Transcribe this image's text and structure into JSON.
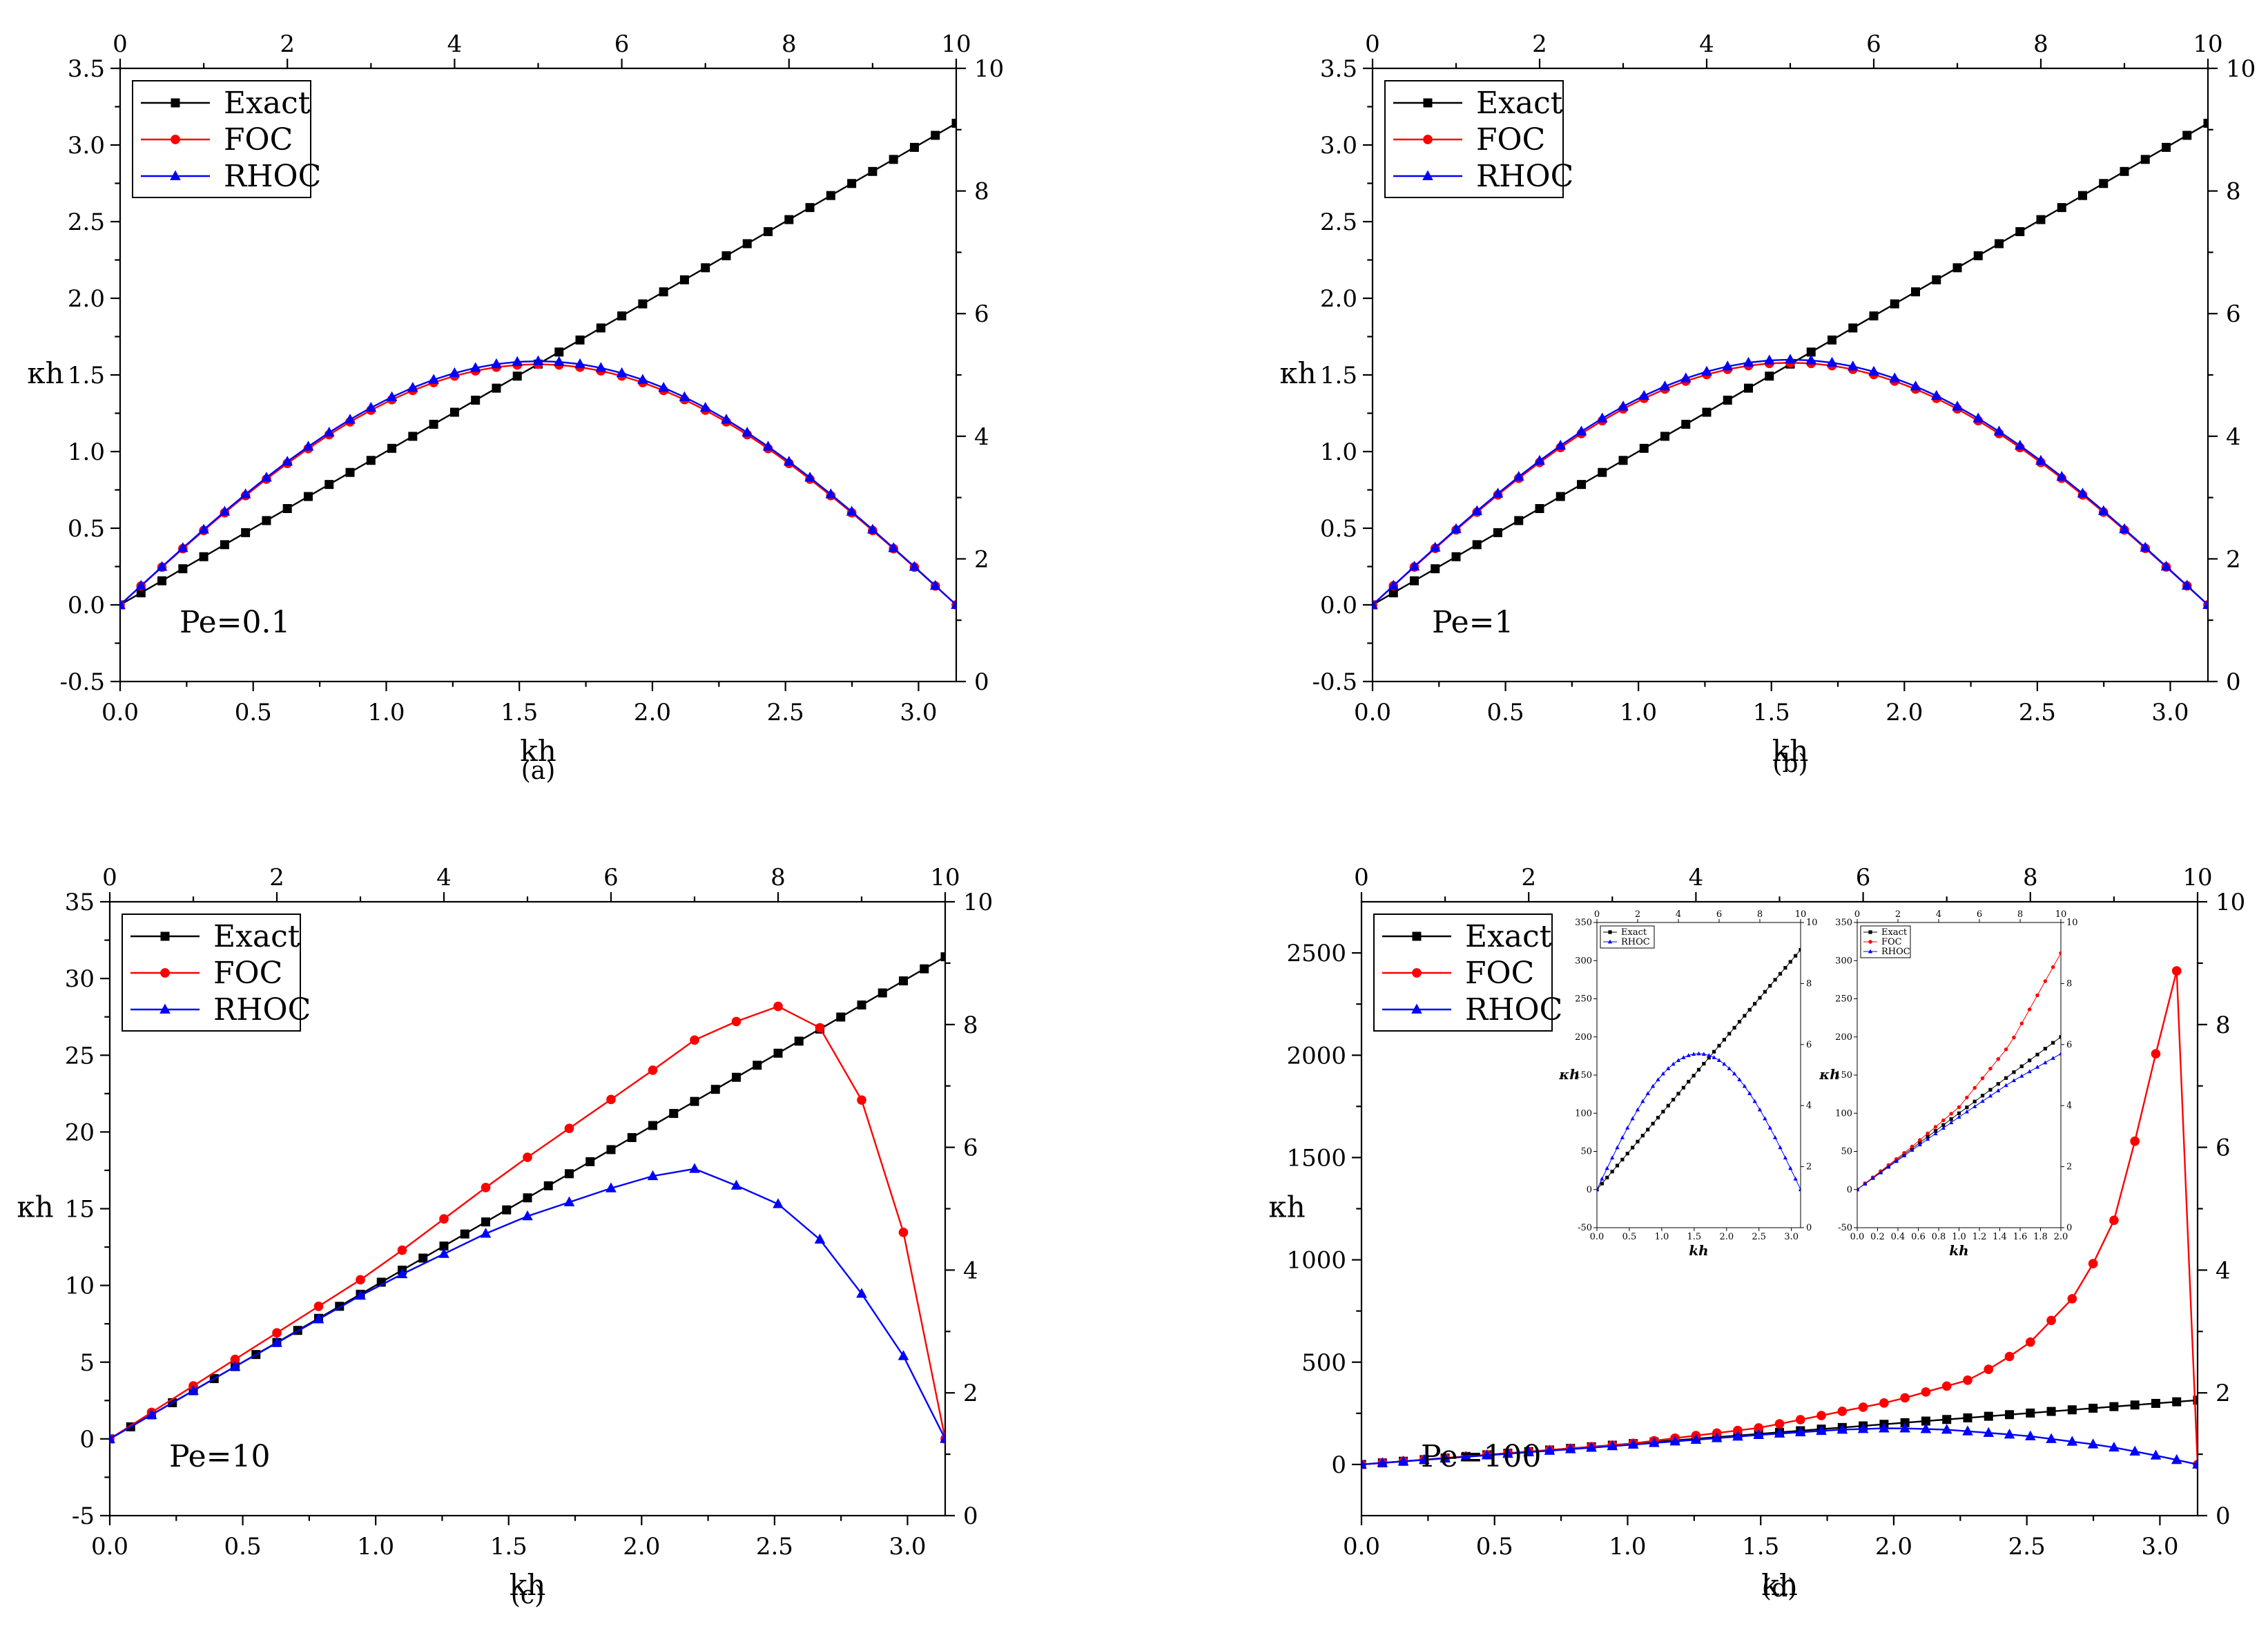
{
  "colors": {
    "exact": "#000000",
    "foc": "#ff0000",
    "rhoc": "#0000ff"
  },
  "chart_data": [
    {
      "id": "a",
      "type": "line",
      "caption": "(a)",
      "annotation": "Pe=0.1",
      "xlabel": "kh",
      "ylabel": "κh",
      "xlim": [
        0,
        3.1416
      ],
      "ylim": [
        -0.5,
        3.5
      ],
      "xticks": [
        0,
        0.5,
        1,
        1.5,
        2,
        2.5,
        3
      ],
      "xtick_labels": [
        "0.0",
        "0.5",
        "1.0",
        "1.5",
        "2.0",
        "2.5",
        "3.0"
      ],
      "yticks": [
        -0.5,
        0,
        0.5,
        1,
        1.5,
        2,
        2.5,
        3,
        3.5
      ],
      "ytick_labels": [
        "-0.5",
        "0.0",
        "0.5",
        "1.0",
        "1.5",
        "2.0",
        "2.5",
        "3.0",
        "3.5"
      ],
      "top_ticks": [
        "0",
        "2",
        "4",
        "6",
        "8",
        "10"
      ],
      "right_ticks": [
        "0",
        "2",
        "4",
        "6",
        "8",
        "10"
      ],
      "legend": [
        "Exact",
        "FOC",
        "RHOC"
      ],
      "series": [
        {
          "name": "Exact",
          "points": 40,
          "values": [
            0,
            3.1416
          ],
          "shape": "linear"
        },
        {
          "name": "FOC",
          "points": 40,
          "values": [
            0,
            1.57,
            0
          ],
          "shape": "sine",
          "peak": 1.57
        },
        {
          "name": "RHOC",
          "points": 40,
          "values": [
            0,
            1.59,
            0
          ],
          "shape": "sine",
          "peak": 1.59
        }
      ]
    },
    {
      "id": "b",
      "type": "line",
      "caption": "(b)",
      "annotation": "Pe=1",
      "xlabel": "kh",
      "ylabel": "κh",
      "xlim": [
        0,
        3.1416
      ],
      "ylim": [
        -0.5,
        3.5
      ],
      "xticks": [
        0,
        0.5,
        1,
        1.5,
        2,
        2.5,
        3
      ],
      "xtick_labels": [
        "0.0",
        "0.5",
        "1.0",
        "1.5",
        "2.0",
        "2.5",
        "3.0"
      ],
      "yticks": [
        -0.5,
        0,
        0.5,
        1,
        1.5,
        2,
        2.5,
        3,
        3.5
      ],
      "ytick_labels": [
        "-0.5",
        "0.0",
        "0.5",
        "1.0",
        "1.5",
        "2.0",
        "2.5",
        "3.0",
        "3.5"
      ],
      "top_ticks": [
        "0",
        "2",
        "4",
        "6",
        "8",
        "10"
      ],
      "right_ticks": [
        "0",
        "2",
        "4",
        "6",
        "8",
        "10"
      ],
      "legend": [
        "Exact",
        "FOC",
        "RHOC"
      ],
      "series": [
        {
          "name": "Exact",
          "points": 40,
          "values": [
            0,
            3.1416
          ],
          "shape": "linear"
        },
        {
          "name": "FOC",
          "points": 40,
          "values": [
            0,
            1.58,
            0
          ],
          "shape": "sine",
          "peak": 1.58
        },
        {
          "name": "RHOC",
          "points": 40,
          "values": [
            0,
            1.6,
            0
          ],
          "shape": "sine",
          "peak": 1.6
        }
      ]
    },
    {
      "id": "c",
      "type": "line",
      "caption": "(c)",
      "annotation": "Pe=10",
      "xlabel": "kh",
      "ylabel": "κh",
      "xlim": [
        0,
        3.1416
      ],
      "ylim": [
        -5,
        35
      ],
      "xticks": [
        0,
        0.5,
        1,
        1.5,
        2,
        2.5,
        3
      ],
      "xtick_labels": [
        "0.0",
        "0.5",
        "1.0",
        "1.5",
        "2.0",
        "2.5",
        "3.0"
      ],
      "yticks": [
        -5,
        0,
        5,
        10,
        15,
        20,
        25,
        30,
        35
      ],
      "ytick_labels": [
        "-5",
        "0",
        "5",
        "10",
        "15",
        "20",
        "25",
        "30",
        "35"
      ],
      "top_ticks": [
        "0",
        "2",
        "4",
        "6",
        "8",
        "10"
      ],
      "right_ticks": [
        "0",
        "2",
        "4",
        "6",
        "8",
        "10"
      ],
      "legend": [
        "Exact",
        "FOC",
        "RHOC"
      ],
      "series": [
        {
          "name": "Exact",
          "points": 40,
          "shape": "linear",
          "slope": 10
        },
        {
          "name": "FOC",
          "points": 20,
          "shape": "interp",
          "knots": [
            [
              0,
              0
            ],
            [
              0.5,
              5.5
            ],
            [
              1.0,
              11.0
            ],
            [
              1.5,
              17.5
            ],
            [
              2.0,
              23.5
            ],
            [
              2.2,
              26.0
            ],
            [
              2.5,
              28.3
            ],
            [
              2.67,
              26.8
            ],
            [
              2.83,
              22.0
            ],
            [
              3.0,
              12.6
            ],
            [
              3.1416,
              0
            ]
          ]
        },
        {
          "name": "RHOC",
          "points": 20,
          "shape": "interp",
          "knots": [
            [
              0,
              0
            ],
            [
              0.5,
              5.0
            ],
            [
              1.0,
              9.9
            ],
            [
              1.5,
              14.1
            ],
            [
              2.0,
              17.0
            ],
            [
              2.2,
              17.6
            ],
            [
              2.5,
              15.5
            ],
            [
              2.67,
              13.0
            ],
            [
              2.83,
              9.4
            ],
            [
              3.0,
              5.0
            ],
            [
              3.1416,
              0
            ]
          ]
        }
      ]
    },
    {
      "id": "d",
      "type": "line",
      "caption": "(d)",
      "annotation": "Pe=100",
      "xlabel": "kh",
      "ylabel": "κh",
      "xlim": [
        0,
        3.1416
      ],
      "ylim": [
        -250,
        2750
      ],
      "xticks": [
        0,
        0.5,
        1,
        1.5,
        2,
        2.5,
        3
      ],
      "xtick_labels": [
        "0.0",
        "0.5",
        "1.0",
        "1.5",
        "2.0",
        "2.5",
        "3.0"
      ],
      "yticks": [
        0,
        500,
        1000,
        1500,
        2000,
        2500
      ],
      "ytick_labels": [
        "0",
        "500",
        "1000",
        "1500",
        "2000",
        "2500"
      ],
      "top_ticks": [
        "0",
        "2",
        "4",
        "6",
        "8",
        "10"
      ],
      "right_ticks": [
        "0",
        "2",
        "4",
        "6",
        "8",
        "10"
      ],
      "legend": [
        "Exact",
        "FOC",
        "RHOC"
      ],
      "series": [
        {
          "name": "Exact",
          "points": 40,
          "shape": "linear",
          "slope": 100
        },
        {
          "name": "FOC",
          "points": 40,
          "shape": "interp",
          "knots": [
            [
              0,
              0
            ],
            [
              1.0,
              100
            ],
            [
              1.5,
              180
            ],
            [
              2.0,
              310
            ],
            [
              2.3,
              420
            ],
            [
              2.5,
              580
            ],
            [
              2.7,
              850
            ],
            [
              2.83,
              1200
            ],
            [
              2.95,
              1800
            ],
            [
              3.03,
              2280
            ],
            [
              3.09,
              2520
            ],
            [
              3.1416,
              0
            ]
          ]
        },
        {
          "name": "RHOC",
          "points": 40,
          "shape": "interp",
          "knots": [
            [
              0,
              0
            ],
            [
              1.0,
              95
            ],
            [
              1.5,
              145
            ],
            [
              1.8,
              170
            ],
            [
              2.0,
              178
            ],
            [
              2.2,
              170
            ],
            [
              2.5,
              140
            ],
            [
              2.8,
              90
            ],
            [
              3.0,
              40
            ],
            [
              3.1416,
              0
            ]
          ]
        }
      ],
      "insets": [
        {
          "id": "d-inset1",
          "xlabel": "kh",
          "ylabel": "κh",
          "xlim": [
            0,
            3.1416
          ],
          "ylim": [
            -50,
            350
          ],
          "xtick_labels": [
            "0.0",
            "0.5",
            "1.0",
            "1.5",
            "2.0",
            "2.5",
            "3.0"
          ],
          "ytick_labels": [
            "-50",
            "0",
            "50",
            "100",
            "150",
            "200",
            "250",
            "300",
            "350"
          ],
          "top_ticks": [
            "0",
            "2",
            "4",
            "6",
            "8",
            "10"
          ],
          "right_ticks": [
            "0",
            "2",
            "4",
            "6",
            "8",
            "10"
          ],
          "legend": [
            "Exact",
            "RHOC"
          ],
          "series": [
            {
              "name": "Exact",
              "shape": "linear",
              "slope": 100,
              "points": 40
            },
            {
              "name": "RHOC",
              "shape": "sine",
              "peak": 178,
              "points": 40
            }
          ]
        },
        {
          "id": "d-inset2",
          "xlabel": "kh",
          "ylabel": "κh",
          "xlim": [
            0,
            2.0
          ],
          "ylim": [
            -50,
            350
          ],
          "xtick_labels": [
            "0.0",
            "0.2",
            "0.4",
            "0.6",
            "0.8",
            "1.0",
            "1.2",
            "1.4",
            "1.6",
            "1.8",
            "2.0"
          ],
          "ytick_labels": [
            "-50",
            "0",
            "50",
            "100",
            "150",
            "200",
            "250",
            "300",
            "350"
          ],
          "top_ticks": [
            "0",
            "2",
            "4",
            "6",
            "8",
            "10"
          ],
          "right_ticks": [
            "0",
            "2",
            "4",
            "6",
            "8",
            "10"
          ],
          "legend": [
            "Exact",
            "FOC",
            "RHOC"
          ],
          "series": [
            {
              "name": "Exact",
              "shape": "linear",
              "slope": 100,
              "points": 26
            },
            {
              "name": "FOC",
              "shape": "interp",
              "points": 26,
              "knots": [
                [
                  0,
                  0
                ],
                [
                  0.5,
                  52
                ],
                [
                  1.0,
                  108
                ],
                [
                  1.5,
                  190
                ],
                [
                  2.0,
                  310
                ]
              ]
            },
            {
              "name": "RHOC",
              "shape": "interp",
              "points": 26,
              "knots": [
                [
                  0,
                  0
                ],
                [
                  0.5,
                  48
                ],
                [
                  1.0,
                  95
                ],
                [
                  1.5,
                  140
                ],
                [
                  2.0,
                  178
                ]
              ]
            }
          ]
        }
      ]
    }
  ]
}
